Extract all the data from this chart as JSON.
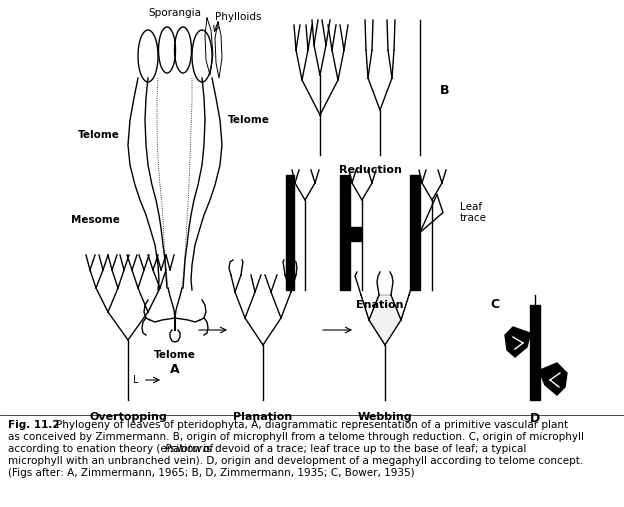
{
  "background_color": "#ffffff",
  "caption_bold": "Fig. 11.2",
  "caption_line1": "Phylogeny of leaves of pteridophyta, A, diagrammatic representation of a primitive vascular plant",
  "caption_line2": "as conceived by Zimmermann. B, origin of microphyll from a telome through reduction. C, origin of microphyll",
  "caption_line3a": "according to enation theory (enation of ",
  "caption_line3b": "Psiloturn",
  "caption_line3c": " is devoid of a trace; leaf trace up to the base of leaf; a typical",
  "caption_line4": "microphyll with an unbranched vein). D, origin and development of a megaphyll according to telome concept.",
  "caption_line5": "(Figs after: A, Zimmermann, 1965; B, D, Zimmermann, 1935; C, Bower, 1935)",
  "lA": "A",
  "lB": "B",
  "lC": "C",
  "lD": "D",
  "lSporangia": "Sporangia",
  "lPhylloids": "Phylloids",
  "lTelomeL": "Telome",
  "lTelomeR": "Telome",
  "lMesome": "Mesome",
  "lTelomeBot": "Telome",
  "lReduction": "Reduction",
  "lEnation": "Enation",
  "lLeafTrace": "Leaf\ntrace",
  "lOvertopping": "Overtopping",
  "lPlanation": "Planation",
  "lWebbing": "Webbing",
  "lL": "L"
}
